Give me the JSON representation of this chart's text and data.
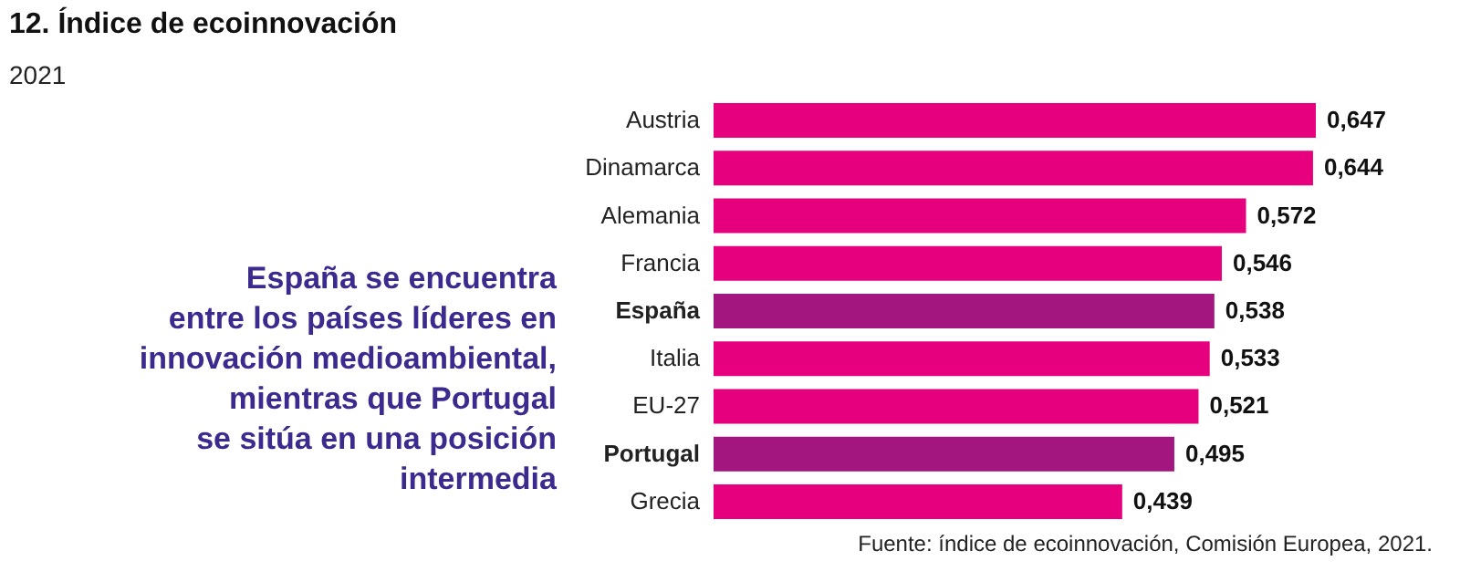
{
  "chart_data": {
    "type": "bar",
    "orientation": "horizontal",
    "title": "12. Índice de ecoinnovación",
    "subtitle": "2021",
    "categories": [
      "Austria",
      "Dinamarca",
      "Alemania",
      "Francia",
      "España",
      "Italia",
      "EU-27",
      "Portugal",
      "Grecia"
    ],
    "values": [
      0.647,
      0.644,
      0.572,
      0.546,
      0.538,
      0.533,
      0.521,
      0.495,
      0.439
    ],
    "value_labels": [
      "0,647",
      "0,644",
      "0,572",
      "0,546",
      "0,538",
      "0,533",
      "0,521",
      "0,495",
      "0,439"
    ],
    "colors": [
      "#e6007e",
      "#e6007e",
      "#e6007e",
      "#e6007e",
      "#a3157f",
      "#e6007e",
      "#e6007e",
      "#a3157f",
      "#e6007e"
    ],
    "annotations": [
      "España se encuentra\nentre los países líderes en\ninnovación medioambiental,\nmientras que Portugal\nse sitúa en una posición\nintermedia",
      "Fuente: índice de ecoinnovación, Comisión Europea, 2021."
    ]
  }
}
